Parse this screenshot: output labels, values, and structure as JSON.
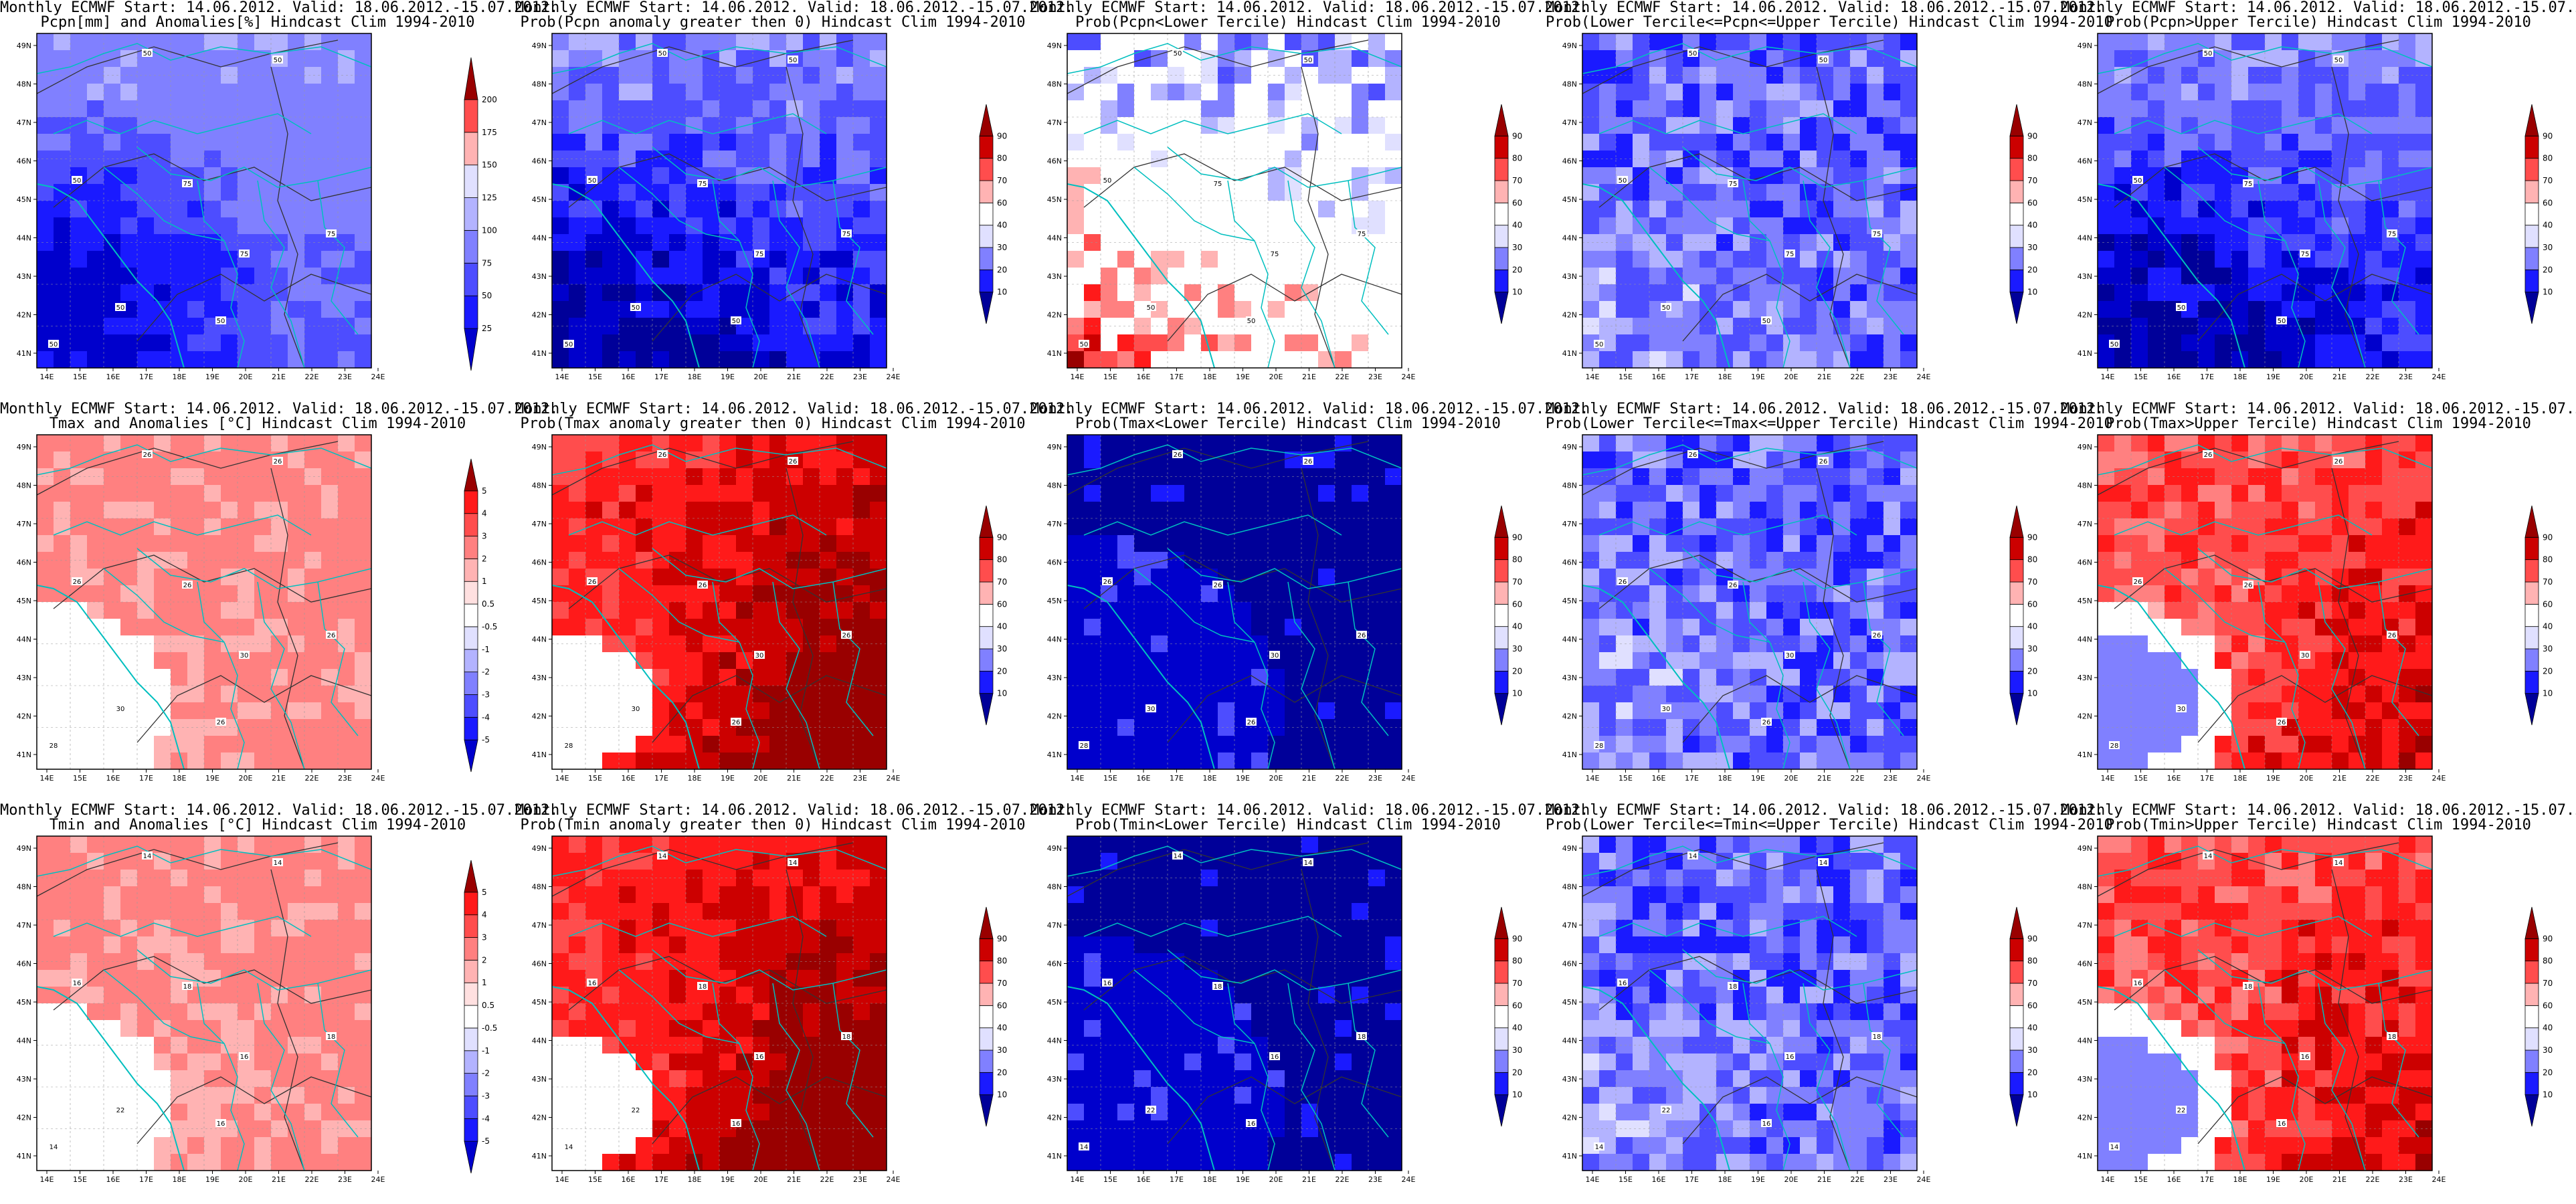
{
  "title_line1": "Monthly ECMWF Start: 14.06.2012. Valid: 18.06.2012.-15.07.2012.",
  "lon_ticks": [
    "14E",
    "15E",
    "16E",
    "17E",
    "18E",
    "19E",
    "20E",
    "21E",
    "22E",
    "23E",
    "24E"
  ],
  "lat_ticks": [
    "41N",
    "42N",
    "43N",
    "44N",
    "45N",
    "46N",
    "47N",
    "48N",
    "49N"
  ],
  "colorbars": {
    "pcpn_amount": [
      "25",
      "50",
      "75",
      "100",
      "125",
      "150",
      "175",
      "200"
    ],
    "anomaly": [
      "-5",
      "-4",
      "-3",
      "-2",
      "-1",
      "-0.5",
      "0.5",
      "1",
      "2",
      "3",
      "4",
      "5"
    ],
    "probability": [
      "10",
      "20",
      "30",
      "40",
      "60",
      "70",
      "80",
      "90"
    ]
  },
  "colors": {
    "blue_scale": [
      "#000099",
      "#0000cc",
      "#1a1aff",
      "#4d4dff",
      "#8080ff",
      "#b3b3ff",
      "#e0e0ff"
    ],
    "red_scale": [
      "#ffe0e0",
      "#ffb3b3",
      "#ff8080",
      "#ff4d4d",
      "#ff1a1a",
      "#cc0000",
      "#990000"
    ],
    "coast_border": "#00bfbf",
    "isoline": "#333333"
  },
  "panels": [
    {
      "id": "pcpn-amount",
      "title": "Pcpn[mm] and Anomalies[%] Hindcast Clim 1994-2010",
      "field": "pcpn_amount",
      "cbar": "pcpn_amount",
      "iso": [
        "50",
        "50",
        "50",
        "75",
        "75",
        "50",
        "75",
        "50",
        "50"
      ]
    },
    {
      "id": "pcpn-prob-gt0",
      "title": "Prob(Pcpn anomaly greater then 0) Hindcast Clim 1994-2010",
      "field": "blue_deep",
      "cbar": "probability",
      "iso": [
        "50",
        "50",
        "50",
        "75",
        "75",
        "50",
        "75",
        "50",
        "50"
      ]
    },
    {
      "id": "pcpn-prob-lt",
      "title": "Prob(Pcpn<Lower Tercile) Hindcast Clim 1994-2010",
      "field": "mixed",
      "cbar": "probability",
      "iso": [
        "50",
        "50",
        "50",
        "75",
        "75",
        "50",
        "75",
        "50",
        "50"
      ]
    },
    {
      "id": "pcpn-prob-mid",
      "title": "Prob(Lower Tercile<=Pcpn<=Upper Tercile) Hindcast Clim 1994-2010",
      "field": "blue_mid",
      "cbar": "probability",
      "iso": [
        "50",
        "50",
        "50",
        "75",
        "75",
        "50",
        "75",
        "50",
        "50"
      ]
    },
    {
      "id": "pcpn-prob-gt",
      "title": "Prob(Pcpn>Upper Tercile) Hindcast Clim 1994-2010",
      "field": "blue_deep",
      "cbar": "probability",
      "iso": [
        "50",
        "50",
        "50",
        "75",
        "75",
        "50",
        "75",
        "50",
        "50"
      ]
    },
    {
      "id": "tmax-anom",
      "title": "Tmax and Anomalies [°C] Hindcast Clim 1994-2010",
      "field": "red_light",
      "cbar": "anomaly",
      "iso": [
        "26",
        "26",
        "26",
        "26",
        "30",
        "30",
        "26",
        "26",
        "28"
      ]
    },
    {
      "id": "tmax-prob-gt0",
      "title": "Prob(Tmax anomaly greater then 0) Hindcast Clim 1994-2010",
      "field": "red_deep",
      "cbar": "probability",
      "iso": [
        "26",
        "26",
        "26",
        "26",
        "30",
        "30",
        "26",
        "26",
        "28"
      ]
    },
    {
      "id": "tmax-prob-lt",
      "title": "Prob(Tmax<Lower Tercile) Hindcast Clim 1994-2010",
      "field": "blue_full",
      "cbar": "probability",
      "iso": [
        "26",
        "26",
        "26",
        "26",
        "30",
        "30",
        "26",
        "26",
        "28"
      ]
    },
    {
      "id": "tmax-prob-mid",
      "title": "Prob(Lower Tercile<=Tmax<=Upper Tercile) Hindcast Clim 1994-2010",
      "field": "blue_mid",
      "cbar": "probability",
      "iso": [
        "26",
        "26",
        "26",
        "26",
        "30",
        "30",
        "26",
        "26",
        "28"
      ]
    },
    {
      "id": "tmax-prob-gt",
      "title": "Prob(Tmax>Upper Tercile) Hindcast Clim 1994-2010",
      "field": "red_mid",
      "cbar": "probability",
      "iso": [
        "26",
        "26",
        "26",
        "26",
        "30",
        "30",
        "26",
        "26",
        "28"
      ]
    },
    {
      "id": "tmin-anom",
      "title": "Tmin and Anomalies [°C] Hindcast Clim 1994-2010",
      "field": "red_light",
      "cbar": "anomaly",
      "iso": [
        "14",
        "14",
        "16",
        "18",
        "16",
        "22",
        "18",
        "16",
        "14"
      ]
    },
    {
      "id": "tmin-prob-gt0",
      "title": "Prob(Tmin anomaly greater then 0) Hindcast Clim 1994-2010",
      "field": "red_deep",
      "cbar": "probability",
      "iso": [
        "14",
        "14",
        "16",
        "18",
        "16",
        "22",
        "18",
        "16",
        "14"
      ]
    },
    {
      "id": "tmin-prob-lt",
      "title": "Prob(Tmin<Lower Tercile) Hindcast Clim 1994-2010",
      "field": "blue_full",
      "cbar": "probability",
      "iso": [
        "14",
        "14",
        "16",
        "18",
        "16",
        "22",
        "18",
        "16",
        "14"
      ]
    },
    {
      "id": "tmin-prob-mid",
      "title": "Prob(Lower Tercile<=Tmin<=Upper Tercile) Hindcast Clim 1994-2010",
      "field": "blue_mid",
      "cbar": "probability",
      "iso": [
        "14",
        "14",
        "16",
        "18",
        "16",
        "22",
        "18",
        "16",
        "14"
      ]
    },
    {
      "id": "tmin-prob-gt",
      "title": "Prob(Tmin>Upper Tercile) Hindcast Clim 1994-2010",
      "field": "red_mid",
      "cbar": "probability",
      "iso": [
        "14",
        "14",
        "16",
        "18",
        "16",
        "22",
        "18",
        "16",
        "14"
      ]
    }
  ]
}
